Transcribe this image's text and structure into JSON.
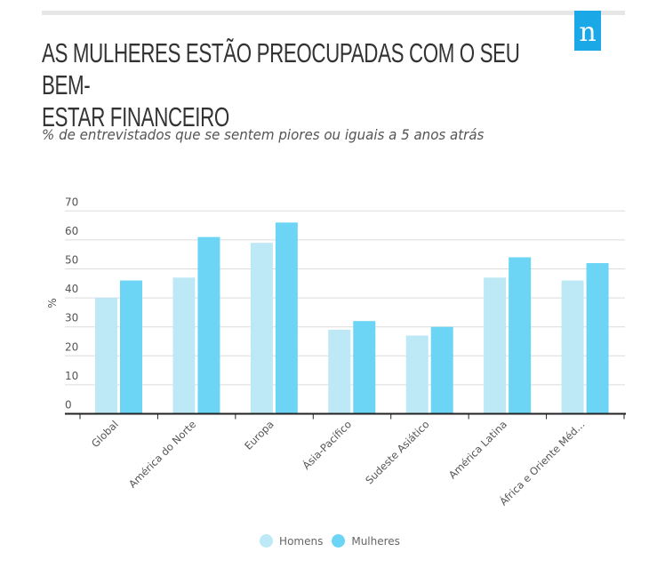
{
  "header": {
    "logo_letter": "n",
    "title": "AS MULHERES ESTÃO PREOCUPADAS COM O SEU BEM-ESTAR FINANCEIRO",
    "title_line1": "AS MULHERES ESTÃO PREOCUPADAS COM O SEU BEM-",
    "title_line2": "ESTAR FINANCEIRO",
    "subtitle": "% de entrevistados que se sentem piores ou iguais a 5 anos atrás"
  },
  "colors": {
    "homens": "#bde8f6",
    "mulheres": "#6cd5f5",
    "logo": "#1ba8e6"
  },
  "chart_data": {
    "type": "bar",
    "title": "AS MULHERES ESTÃO PREOCUPADAS COM O SEU BEM-ESTAR FINANCEIRO",
    "subtitle": "% de entrevistados que se sentem piores ou iguais a 5 anos atrás",
    "xlabel": "",
    "ylabel": "%",
    "ylim": [
      0,
      70
    ],
    "yticks": [
      "0",
      "10",
      "20",
      "30",
      "40",
      "50",
      "60",
      "70"
    ],
    "grid": true,
    "legend_position": "bottom",
    "categories": [
      "Global",
      "América do Norte",
      "Europa",
      "Ásia-Pacífico",
      "Sudeste Asiático",
      "América Latina",
      "África e Oriente Méd..."
    ],
    "series": [
      {
        "name": "Homens",
        "values": [
          40,
          47,
          59,
          29,
          27,
          47,
          46
        ]
      },
      {
        "name": "Mulheres",
        "values": [
          46,
          61,
          66,
          32,
          30,
          54,
          52
        ]
      }
    ]
  }
}
